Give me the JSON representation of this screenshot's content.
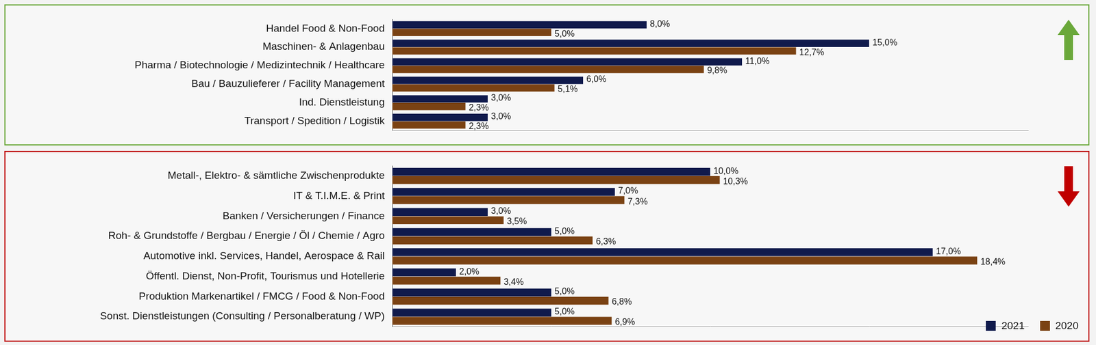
{
  "chart_data": [
    {
      "type": "bar",
      "orientation": "horizontal",
      "categories": [
        "Handel Food & Non-Food",
        "Maschinen- & Anlagenbau",
        "Pharma / Biotechnologie / Medizintechnik / Healthcare",
        "Bau / Bauzulieferer / Facility Management",
        "Ind. Dienstleistung",
        "Transport / Spedition / Logistik"
      ],
      "series": [
        {
          "name": "2021",
          "color": "#101a4c",
          "values": [
            8.0,
            15.0,
            11.0,
            6.0,
            3.0,
            3.0
          ],
          "value_labels": [
            "8,0%",
            "15,0%",
            "11,0%",
            "6,0%",
            "3,0%",
            "3,0%"
          ]
        },
        {
          "name": "2020",
          "color": "#7a4213",
          "values": [
            5.0,
            12.7,
            9.8,
            5.1,
            2.3,
            2.3
          ],
          "value_labels": [
            "5,0%",
            "12,7%",
            "9,8%",
            "5,1%",
            "2,3%",
            "2,3%"
          ]
        }
      ],
      "xlim": [
        0,
        20
      ],
      "grid": false,
      "data_labels": true,
      "tick_labels": "y"
    },
    {
      "type": "bar",
      "orientation": "horizontal",
      "categories": [
        "Metall-, Elektro- & sämtliche Zwischenprodukte",
        "IT & T.I.M.E. & Print",
        "Banken / Versicherungen / Finance",
        "Roh- & Grundstoffe / Bergbau / Energie / Öl / Chemie / Agro",
        "Automotive inkl. Services, Handel, Aerospace & Rail",
        "Öffentl. Dienst, Non-Profit, Tourismus und Hotellerie",
        "Produktion Markenartikel / FMCG / Food & Non-Food",
        "Sonst. Dienstleistungen (Consulting / Personalberatung / WP)"
      ],
      "series": [
        {
          "name": "2021",
          "color": "#101a4c",
          "values": [
            10.0,
            7.0,
            3.0,
            5.0,
            17.0,
            2.0,
            5.0,
            5.0
          ],
          "value_labels": [
            "10,0%",
            "7,0%",
            "3,0%",
            "5,0%",
            "17,0%",
            "2,0%",
            "5,0%",
            "5,0%"
          ]
        },
        {
          "name": "2020",
          "color": "#7a4213",
          "values": [
            10.3,
            7.3,
            3.5,
            6.3,
            18.4,
            3.4,
            6.8,
            6.9
          ],
          "value_labels": [
            "10,3%",
            "7,3%",
            "3,5%",
            "6,3%",
            "18,4%",
            "3,4%",
            "6,8%",
            "6,9%"
          ]
        }
      ],
      "xlim": [
        0,
        20
      ],
      "grid": false,
      "data_labels": true,
      "tick_labels": "y",
      "legend": "lower right"
    }
  ]
}
